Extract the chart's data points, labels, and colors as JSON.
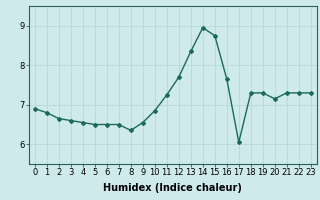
{
  "x": [
    0,
    1,
    2,
    3,
    4,
    5,
    6,
    7,
    8,
    9,
    10,
    11,
    12,
    13,
    14,
    15,
    16,
    17,
    18,
    19,
    20,
    21,
    22,
    23
  ],
  "y": [
    6.9,
    6.8,
    6.65,
    6.6,
    6.55,
    6.5,
    6.5,
    6.5,
    6.35,
    6.55,
    6.85,
    7.25,
    7.7,
    8.35,
    8.95,
    8.75,
    7.65,
    6.05,
    7.3,
    7.3,
    7.15,
    7.3,
    7.3,
    7.3
  ],
  "line_color": "#1a6b5a",
  "marker": "D",
  "marker_size": 2,
  "bg_color": "#ceeaea",
  "grid_color": "#b8d8d8",
  "xlabel": "Humidex (Indice chaleur)",
  "ylim": [
    5.5,
    9.5
  ],
  "yticks": [
    6,
    7,
    8,
    9
  ],
  "xlim": [
    -0.5,
    23.5
  ],
  "xticks": [
    0,
    1,
    2,
    3,
    4,
    5,
    6,
    7,
    8,
    9,
    10,
    11,
    12,
    13,
    14,
    15,
    16,
    17,
    18,
    19,
    20,
    21,
    22,
    23
  ],
  "xlabel_fontsize": 7,
  "tick_fontsize": 6,
  "line_width": 1.0
}
